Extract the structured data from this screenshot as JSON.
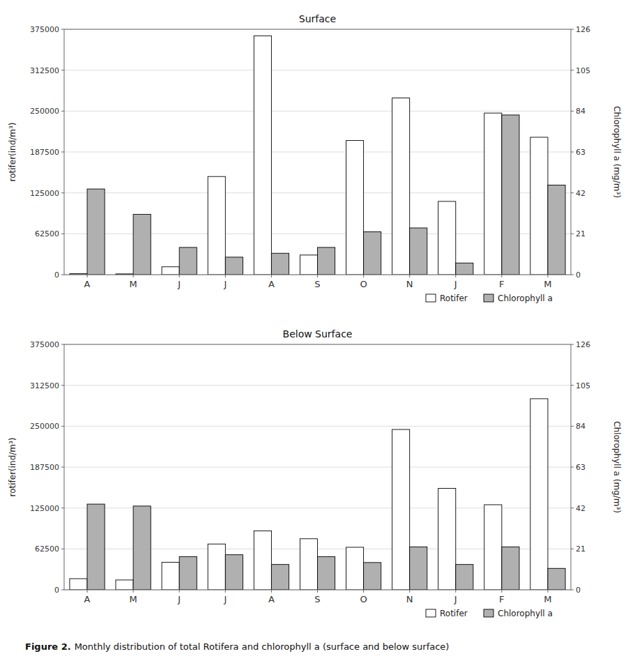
{
  "chart_data": [
    {
      "type": "bar",
      "title": "Surface",
      "categories": [
        "A",
        "M",
        "J",
        "J",
        "A",
        "S",
        "O",
        "N",
        "J",
        "F",
        "M"
      ],
      "series": [
        {
          "name": "Rotifer",
          "color": "white",
          "values": [
            1500,
            1200,
            12000,
            150000,
            365000,
            30000,
            205000,
            270000,
            112000,
            247000,
            210000
          ]
        },
        {
          "name": "Chlorophyll a",
          "color": "#b0b0b0",
          "axis": "y2",
          "values": [
            44,
            31,
            14,
            9,
            11,
            14,
            22,
            24,
            6,
            82,
            46
          ]
        }
      ],
      "ylim": [
        0,
        375000
      ],
      "yticks": [
        0,
        62500,
        125000,
        187500,
        250000,
        312500,
        375000
      ],
      "y2lim": [
        0,
        126
      ],
      "y2ticks": [
        0,
        21,
        42,
        63,
        84,
        105,
        126
      ],
      "ylabel": "rotifer(ind/m³)",
      "y2label": "Chlorophyll a (mg/m³)",
      "grid": true,
      "legend": "lower right"
    },
    {
      "type": "bar",
      "title": "Below Surface",
      "categories": [
        "A",
        "M",
        "J",
        "J",
        "A",
        "S",
        "O",
        "N",
        "J",
        "F",
        "M"
      ],
      "series": [
        {
          "name": "Rotifer",
          "color": "white",
          "values": [
            17000,
            15000,
            42000,
            70000,
            90000,
            78000,
            65000,
            245000,
            155000,
            130000,
            292000
          ]
        },
        {
          "name": "Chlorophyll a",
          "color": "#b0b0b0",
          "axis": "y2",
          "values": [
            44,
            43,
            17,
            18,
            13,
            17,
            14,
            22,
            13,
            22,
            11
          ]
        }
      ],
      "ylim": [
        0,
        375000
      ],
      "yticks": [
        0,
        62500,
        125000,
        187500,
        250000,
        312500,
        375000
      ],
      "y2lim": [
        0,
        126
      ],
      "y2ticks": [
        0,
        21,
        42,
        63,
        84,
        105,
        126
      ],
      "ylabel": "rotifer(ind/m³)",
      "y2label": "Chlorophyll a (mg/m³)",
      "grid": true,
      "legend": "lower right"
    }
  ],
  "caption": [
    "Figure 2.",
    "Monthly distribution of total Rotifera and chlorophyll a (surface and below surface)"
  ]
}
